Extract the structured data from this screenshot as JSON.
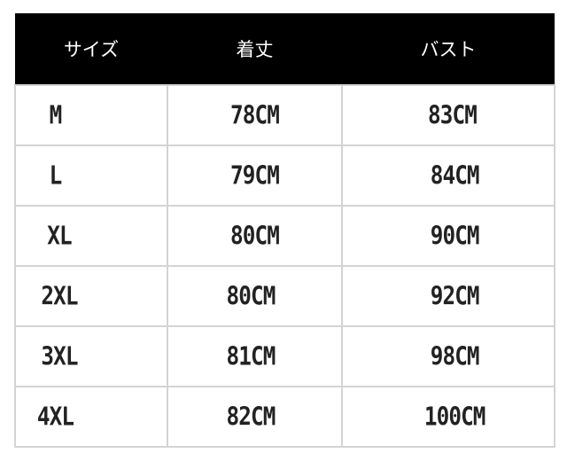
{
  "headers": [
    "サイズ",
    "着丈",
    "バスト"
  ],
  "rows": [
    [
      "M",
      "78CM",
      "83CM"
    ],
    [
      "L",
      "79CM",
      "84CM"
    ],
    [
      "XL",
      "80CM",
      "90CM"
    ],
    [
      "2XL",
      "80CM",
      "92CM"
    ],
    [
      "3XL",
      "81CM",
      "98CM"
    ],
    [
      "4XL",
      "82CM",
      "100CM"
    ]
  ],
  "colors": {
    "header_bg": "#000000",
    "header_text": "#ffffff",
    "border": "#d4d4d4"
  }
}
